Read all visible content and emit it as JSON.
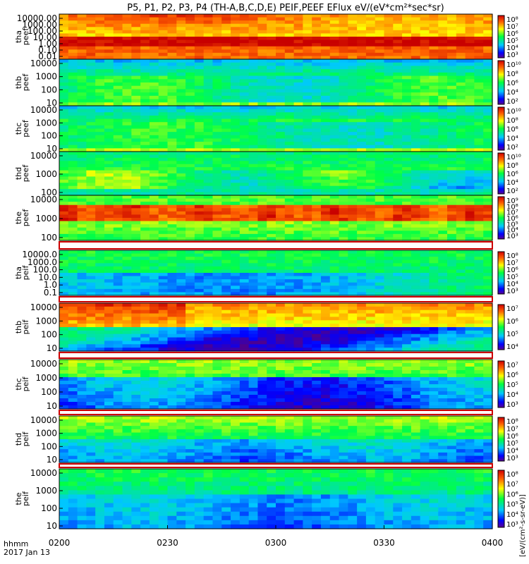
{
  "title": "P5, P1, P2, P3, P4 (TH-A,B,C,D,E) PEIF,PEEF EFlux eV/(eV*cm²*sec*sr)",
  "footer": {
    "row1": "hhmm",
    "row2": "2017 Jan 13"
  },
  "cb_unit_label": "[eV/(cm²-s-sr-eV)]",
  "chart_data": {
    "type": "heatmap",
    "x_ticks": [
      "0200",
      "0230",
      "0300",
      "0330",
      "0400"
    ],
    "x_range": [
      "02:00",
      "04:00"
    ],
    "panels": [
      {
        "id": "tha-peef",
        "label": [
          "tha",
          "peef"
        ],
        "log_y": true,
        "y_ticks": [
          "10000.00",
          "1000.00",
          "100.00",
          "10.00",
          "1.00",
          "0.10",
          "0.01"
        ],
        "cb_ticks": [
          "10⁸",
          "10⁷",
          "10⁶",
          "10⁵",
          "10⁴",
          "10³"
        ]
      },
      {
        "id": "thb-peef",
        "label": [
          "thb",
          "peef"
        ],
        "log_y": true,
        "y_ticks": [
          "10000",
          "1000",
          "100",
          "10"
        ],
        "cb_ticks": [
          "10¹⁰",
          "10⁸",
          "10⁶",
          "10⁴",
          "10²"
        ]
      },
      {
        "id": "thc-peef",
        "label": [
          "thc",
          "peef"
        ],
        "log_y": true,
        "y_ticks": [
          "10000",
          "1000",
          "100",
          "10"
        ],
        "cb_ticks": [
          "10¹⁰",
          "10⁸",
          "10⁶",
          "10⁴",
          "10²"
        ]
      },
      {
        "id": "thd-peef",
        "label": [
          "thd",
          "peef"
        ],
        "log_y": true,
        "y_ticks": [
          "10000",
          "1000",
          "100"
        ],
        "cb_ticks": [
          "10¹⁰",
          "10⁸",
          "10⁶",
          "10⁴",
          "10²"
        ]
      },
      {
        "id": "the-peef",
        "label": [
          "the",
          "peef"
        ],
        "log_y": true,
        "y_ticks": [
          "10000",
          "1000",
          "100"
        ],
        "cb_ticks": [
          "10⁹",
          "10⁸",
          "10⁷",
          "10⁶",
          "10⁵",
          "10⁴",
          "10³"
        ]
      },
      {
        "id": "tha-peif",
        "label": [
          "tha",
          "peif"
        ],
        "log_y": true,
        "y_ticks": [
          "10000.0",
          "1000.0",
          "100.0",
          "10.0",
          "1.0",
          "0.1"
        ],
        "cb_ticks": [
          "10⁸",
          "10⁷",
          "10⁶",
          "10⁵",
          "10⁴",
          "10³"
        ]
      },
      {
        "id": "thb-peif",
        "label": [
          "thb",
          "peif"
        ],
        "log_y": true,
        "y_ticks": [
          "10000",
          "1000",
          "100",
          "10"
        ],
        "cb_ticks": [
          "10⁷",
          "10⁶",
          "10⁵",
          "10⁴"
        ]
      },
      {
        "id": "thc-peif",
        "label": [
          "thc",
          "peif"
        ],
        "log_y": true,
        "y_ticks": [
          "10000",
          "1000",
          "100",
          "10"
        ],
        "cb_ticks": [
          "10⁷",
          "10⁶",
          "10⁵",
          "10⁴",
          "10³"
        ]
      },
      {
        "id": "thd-peif",
        "label": [
          "thd",
          "peif"
        ],
        "log_y": true,
        "y_ticks": [
          "10000",
          "1000",
          "100",
          "10"
        ],
        "cb_ticks": [
          "10⁸",
          "10⁷",
          "10⁶",
          "10⁵",
          "10⁴",
          "10³"
        ]
      },
      {
        "id": "the-peif",
        "label": [
          "the",
          "peif"
        ],
        "log_y": true,
        "y_ticks": [
          "10000",
          "1000",
          "100",
          "10"
        ],
        "cb_ticks": [
          "10⁸",
          "10⁷",
          "10⁶",
          "10⁵",
          "10⁴",
          "10³"
        ]
      }
    ]
  }
}
